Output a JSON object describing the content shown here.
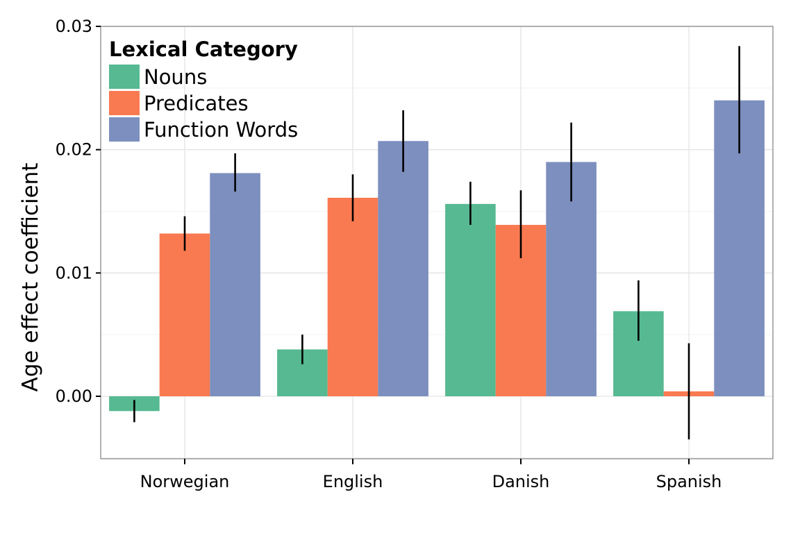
{
  "chart_data": {
    "type": "bar",
    "title": "",
    "xlabel": "",
    "ylabel": "Age effect coefficient",
    "ylim": [
      -0.005,
      0.03
    ],
    "yticks": [
      "0.00",
      "0.01",
      "0.02",
      "0.03"
    ],
    "ytick_values": [
      0.0,
      0.01,
      0.02,
      0.03
    ],
    "grid": true,
    "legend": {
      "title": "Lexical Category",
      "position": "top-left"
    },
    "categories": [
      "Norwegian",
      "English",
      "Danish",
      "Spanish"
    ],
    "series": [
      {
        "name": "Nouns",
        "color": "#56B991",
        "values": [
          -0.0012,
          0.0038,
          0.0156,
          0.0069
        ],
        "err_low": [
          -0.0021,
          0.0026,
          0.0139,
          0.0045
        ],
        "err_high": [
          -0.0003,
          0.005,
          0.0174,
          0.0094
        ]
      },
      {
        "name": "Predicates",
        "color": "#F97A51",
        "values": [
          0.0132,
          0.0161,
          0.0139,
          0.0004
        ],
        "err_low": [
          0.0118,
          0.0142,
          0.0112,
          -0.0035
        ],
        "err_high": [
          0.0146,
          0.018,
          0.0167,
          0.0043
        ]
      },
      {
        "name": "Function Words",
        "color": "#7C8FBE",
        "values": [
          0.0181,
          0.0207,
          0.019,
          0.024
        ],
        "err_low": [
          0.0166,
          0.0182,
          0.0158,
          0.0197
        ],
        "err_high": [
          0.0197,
          0.0232,
          0.0222,
          0.0284
        ]
      }
    ]
  }
}
